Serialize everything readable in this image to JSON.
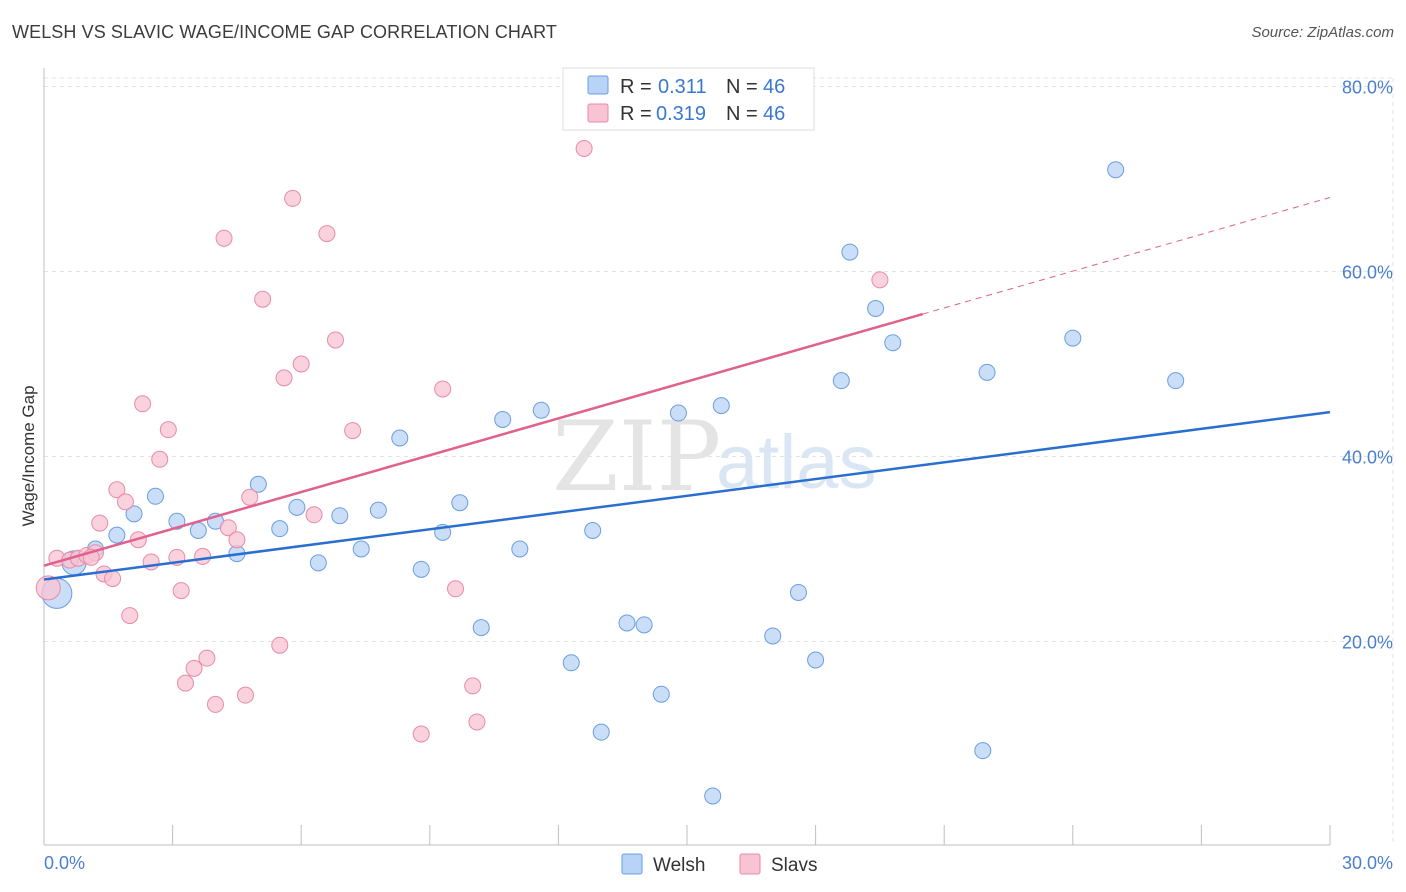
{
  "title": "WELSH VS SLAVIC WAGE/INCOME GAP CORRELATION CHART",
  "source": "Source: ZipAtlas.com",
  "watermark": {
    "zip": "ZIP",
    "atlas": "atlas"
  },
  "colors": {
    "welsh_fill": "#b8d3f5",
    "welsh_stroke": "#6a9ee0",
    "welsh_line": "#2a6fd0",
    "slavs_fill": "#f8c3d3",
    "slavs_stroke": "#e88aa8",
    "slavs_line": "#e0608e",
    "grid": "#e3e3e3",
    "tick_label": "#4a7fcf"
  },
  "legend": {
    "rows": [
      {
        "r_label": "R =",
        "r_value": "0.311",
        "n_label": "N =",
        "n_value": "46"
      },
      {
        "r_label": "R =",
        "r_value": "0.319",
        "n_label": "N =",
        "n_value": "46"
      }
    ]
  },
  "chart_data": {
    "type": "scatter",
    "title": "WELSH VS SLAVIC WAGE/INCOME GAP CORRELATION CHART",
    "xlabel": "",
    "ylabel": "Wage/Income Gap",
    "xlim": [
      0,
      30
    ],
    "ylim": [
      -2,
      82
    ],
    "x_tick_labels": [
      "0.0%",
      "30.0%"
    ],
    "y_ticks": [
      20,
      40,
      60,
      80
    ],
    "y_tick_labels": [
      "20.0%",
      "40.0%",
      "60.0%",
      "80.0%"
    ],
    "grid": true,
    "legend_position": "top-center",
    "series": [
      {
        "name": "Welsh",
        "trend": {
          "x0": 0,
          "y0": 26.7,
          "x1": 30,
          "y1": 44.8,
          "solid_to": 30
        },
        "points": [
          {
            "x": 0.3,
            "y": 25.2,
            "s": 3
          },
          {
            "x": 0.7,
            "y": 28.5,
            "s": 2
          },
          {
            "x": 1.2,
            "y": 30.0,
            "s": 1
          },
          {
            "x": 1.7,
            "y": 31.5,
            "s": 1
          },
          {
            "x": 2.1,
            "y": 33.8,
            "s": 1
          },
          {
            "x": 2.6,
            "y": 35.7,
            "s": 1
          },
          {
            "x": 3.1,
            "y": 33.0,
            "s": 1
          },
          {
            "x": 3.6,
            "y": 32.0,
            "s": 1
          },
          {
            "x": 4.0,
            "y": 33.0,
            "s": 1
          },
          {
            "x": 4.5,
            "y": 29.5,
            "s": 1
          },
          {
            "x": 5.0,
            "y": 37.0,
            "s": 1
          },
          {
            "x": 5.5,
            "y": 32.2,
            "s": 1
          },
          {
            "x": 5.9,
            "y": 34.5,
            "s": 1
          },
          {
            "x": 6.4,
            "y": 28.5,
            "s": 1
          },
          {
            "x": 6.9,
            "y": 33.6,
            "s": 1
          },
          {
            "x": 7.4,
            "y": 30.0,
            "s": 1
          },
          {
            "x": 7.8,
            "y": 34.2,
            "s": 1
          },
          {
            "x": 8.3,
            "y": 42.0,
            "s": 1
          },
          {
            "x": 8.8,
            "y": 27.8,
            "s": 1
          },
          {
            "x": 9.3,
            "y": 31.8,
            "s": 1
          },
          {
            "x": 9.7,
            "y": 35.0,
            "s": 1
          },
          {
            "x": 10.2,
            "y": 21.5,
            "s": 1
          },
          {
            "x": 10.7,
            "y": 44.0,
            "s": 1
          },
          {
            "x": 11.1,
            "y": 30.0,
            "s": 1
          },
          {
            "x": 11.6,
            "y": 45.0,
            "s": 1
          },
          {
            "x": 12.3,
            "y": 17.7,
            "s": 1
          },
          {
            "x": 12.8,
            "y": 32.0,
            "s": 1
          },
          {
            "x": 13.0,
            "y": 10.2,
            "s": 1
          },
          {
            "x": 13.6,
            "y": 22.0,
            "s": 1
          },
          {
            "x": 14.0,
            "y": 21.8,
            "s": 1
          },
          {
            "x": 14.4,
            "y": 14.3,
            "s": 1
          },
          {
            "x": 14.8,
            "y": 44.7,
            "s": 1
          },
          {
            "x": 15.6,
            "y": 3.3,
            "s": 1
          },
          {
            "x": 15.8,
            "y": 45.5,
            "s": 1
          },
          {
            "x": 17.0,
            "y": 20.6,
            "s": 1
          },
          {
            "x": 17.6,
            "y": 25.3,
            "s": 1
          },
          {
            "x": 18.0,
            "y": 18.0,
            "s": 1
          },
          {
            "x": 18.6,
            "y": 48.2,
            "s": 1
          },
          {
            "x": 18.8,
            "y": 62.1,
            "s": 1
          },
          {
            "x": 19.4,
            "y": 56.0,
            "s": 1
          },
          {
            "x": 19.8,
            "y": 52.3,
            "s": 1
          },
          {
            "x": 21.9,
            "y": 8.2,
            "s": 1
          },
          {
            "x": 22.0,
            "y": 49.1,
            "s": 1
          },
          {
            "x": 24.0,
            "y": 52.8,
            "s": 1
          },
          {
            "x": 25.0,
            "y": 71.0,
            "s": 1
          },
          {
            "x": 26.4,
            "y": 48.2,
            "s": 1
          }
        ]
      },
      {
        "name": "Slavs",
        "trend": {
          "x0": 0,
          "y0": 28.2,
          "x1": 30,
          "y1": 68.0,
          "solid_to": 20.5
        },
        "points": [
          {
            "x": 0.1,
            "y": 25.8,
            "s": 2
          },
          {
            "x": 0.3,
            "y": 29.0,
            "s": 1
          },
          {
            "x": 0.6,
            "y": 28.8,
            "s": 1
          },
          {
            "x": 0.8,
            "y": 29.0,
            "s": 1
          },
          {
            "x": 1.0,
            "y": 29.3,
            "s": 1
          },
          {
            "x": 1.2,
            "y": 29.6,
            "s": 1
          },
          {
            "x": 1.3,
            "y": 32.8,
            "s": 1
          },
          {
            "x": 1.4,
            "y": 27.3,
            "s": 1
          },
          {
            "x": 1.6,
            "y": 26.8,
            "s": 1
          },
          {
            "x": 1.7,
            "y": 36.4,
            "s": 1
          },
          {
            "x": 1.9,
            "y": 35.1,
            "s": 1
          },
          {
            "x": 2.0,
            "y": 22.8,
            "s": 1
          },
          {
            "x": 2.2,
            "y": 31.0,
            "s": 1
          },
          {
            "x": 2.3,
            "y": 45.7,
            "s": 1
          },
          {
            "x": 2.5,
            "y": 28.6,
            "s": 1
          },
          {
            "x": 2.7,
            "y": 39.7,
            "s": 1
          },
          {
            "x": 2.9,
            "y": 42.9,
            "s": 1
          },
          {
            "x": 3.1,
            "y": 29.1,
            "s": 1
          },
          {
            "x": 3.2,
            "y": 25.5,
            "s": 1
          },
          {
            "x": 3.3,
            "y": 15.5,
            "s": 1
          },
          {
            "x": 3.5,
            "y": 17.1,
            "s": 1
          },
          {
            "x": 3.7,
            "y": 29.2,
            "s": 1
          },
          {
            "x": 3.8,
            "y": 18.2,
            "s": 1
          },
          {
            "x": 4.0,
            "y": 13.2,
            "s": 1
          },
          {
            "x": 4.2,
            "y": 63.6,
            "s": 1
          },
          {
            "x": 4.3,
            "y": 32.3,
            "s": 1
          },
          {
            "x": 4.5,
            "y": 31.0,
            "s": 1
          },
          {
            "x": 4.7,
            "y": 14.2,
            "s": 1
          },
          {
            "x": 4.8,
            "y": 35.6,
            "s": 1
          },
          {
            "x": 5.1,
            "y": 57.0,
            "s": 1
          },
          {
            "x": 5.5,
            "y": 19.6,
            "s": 1
          },
          {
            "x": 5.6,
            "y": 48.5,
            "s": 1
          },
          {
            "x": 5.8,
            "y": 67.9,
            "s": 1
          },
          {
            "x": 6.0,
            "y": 50.0,
            "s": 1
          },
          {
            "x": 6.3,
            "y": 33.7,
            "s": 1
          },
          {
            "x": 6.6,
            "y": 64.1,
            "s": 1
          },
          {
            "x": 6.8,
            "y": 52.6,
            "s": 1
          },
          {
            "x": 7.2,
            "y": 42.8,
            "s": 1
          },
          {
            "x": 8.8,
            "y": 10.0,
            "s": 1
          },
          {
            "x": 9.3,
            "y": 47.3,
            "s": 1
          },
          {
            "x": 9.6,
            "y": 25.7,
            "s": 1
          },
          {
            "x": 10.0,
            "y": 15.2,
            "s": 1
          },
          {
            "x": 10.1,
            "y": 11.3,
            "s": 1
          },
          {
            "x": 12.6,
            "y": 73.3,
            "s": 1
          },
          {
            "x": 19.5,
            "y": 59.1,
            "s": 1
          },
          {
            "x": 1.1,
            "y": 29.1,
            "s": 1
          }
        ]
      }
    ]
  }
}
